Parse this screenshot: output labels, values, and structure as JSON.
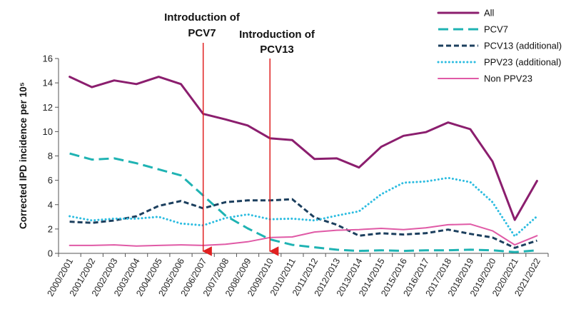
{
  "chart_data": {
    "type": "line",
    "ylabel": "Corrected IPD incidence per 10⁵",
    "ylim": [
      0,
      16
    ],
    "yticks": [
      0,
      2,
      4,
      6,
      8,
      10,
      12,
      14,
      16
    ],
    "grid": false,
    "legend_position": "top-right",
    "categories": [
      "2000/2001",
      "2001/2002",
      "2002/2003",
      "2003/2004",
      "2004/2005",
      "2005/2006",
      "2006/2007",
      "2007/2008",
      "2008/2009",
      "2009/2010",
      "2010/2011",
      "2011/2012",
      "2012/2013",
      "2013/2014",
      "2014/2015",
      "2015/2016",
      "2016/2017",
      "2017/2018",
      "2018/2019",
      "2019/2020",
      "2020/2021",
      "2021/2022"
    ],
    "series": [
      {
        "name": "All",
        "color": "#8b1e6e",
        "style": "solid",
        "values": [
          14.5,
          13.65,
          14.2,
          13.9,
          14.5,
          13.9,
          11.45,
          11.0,
          10.5,
          9.45,
          9.3,
          7.75,
          7.8,
          7.05,
          8.75,
          9.65,
          9.95,
          10.75,
          10.2,
          7.55,
          2.75,
          5.95
        ]
      },
      {
        "name": "PCV7",
        "color": "#1fb3b3",
        "style": "dash",
        "values": [
          8.2,
          7.7,
          7.8,
          7.4,
          6.9,
          6.4,
          4.75,
          3.1,
          2.05,
          1.15,
          0.7,
          0.5,
          0.3,
          0.2,
          0.25,
          0.2,
          0.25,
          0.25,
          0.3,
          0.25,
          0.1,
          0.25
        ]
      },
      {
        "name": "PCV13 (additional)",
        "color": "#1c3f5e",
        "style": "shortdash",
        "values": [
          2.6,
          2.5,
          2.7,
          3.05,
          3.9,
          4.3,
          3.7,
          4.2,
          4.35,
          4.35,
          4.45,
          2.95,
          2.35,
          1.45,
          1.65,
          1.55,
          1.65,
          1.95,
          1.6,
          1.3,
          0.45,
          1.05
        ]
      },
      {
        "name": "PPV23 (additional)",
        "color": "#2bbce0",
        "style": "dot",
        "values": [
          3.05,
          2.7,
          2.85,
          2.85,
          3.0,
          2.45,
          2.3,
          2.9,
          3.2,
          2.8,
          2.85,
          2.7,
          3.1,
          3.45,
          4.85,
          5.8,
          5.9,
          6.2,
          5.85,
          4.2,
          1.4,
          3.05
        ]
      },
      {
        "name": "Non PPV23",
        "color": "#e05aa6",
        "style": "solid-thin",
        "values": [
          0.65,
          0.65,
          0.7,
          0.6,
          0.65,
          0.7,
          0.65,
          0.75,
          0.95,
          1.3,
          1.35,
          1.75,
          1.9,
          1.95,
          2.05,
          1.95,
          2.1,
          2.35,
          2.4,
          1.85,
          0.7,
          1.45
        ]
      }
    ],
    "annotations": [
      {
        "text_lines": [
          "Introduction of",
          "PCV7"
        ],
        "at_category": "2006/2007",
        "color": "#e02020"
      },
      {
        "text_lines": [
          "Introduction of",
          "PCV13"
        ],
        "at_category": "2009/2010",
        "color": "#e02020"
      }
    ]
  }
}
